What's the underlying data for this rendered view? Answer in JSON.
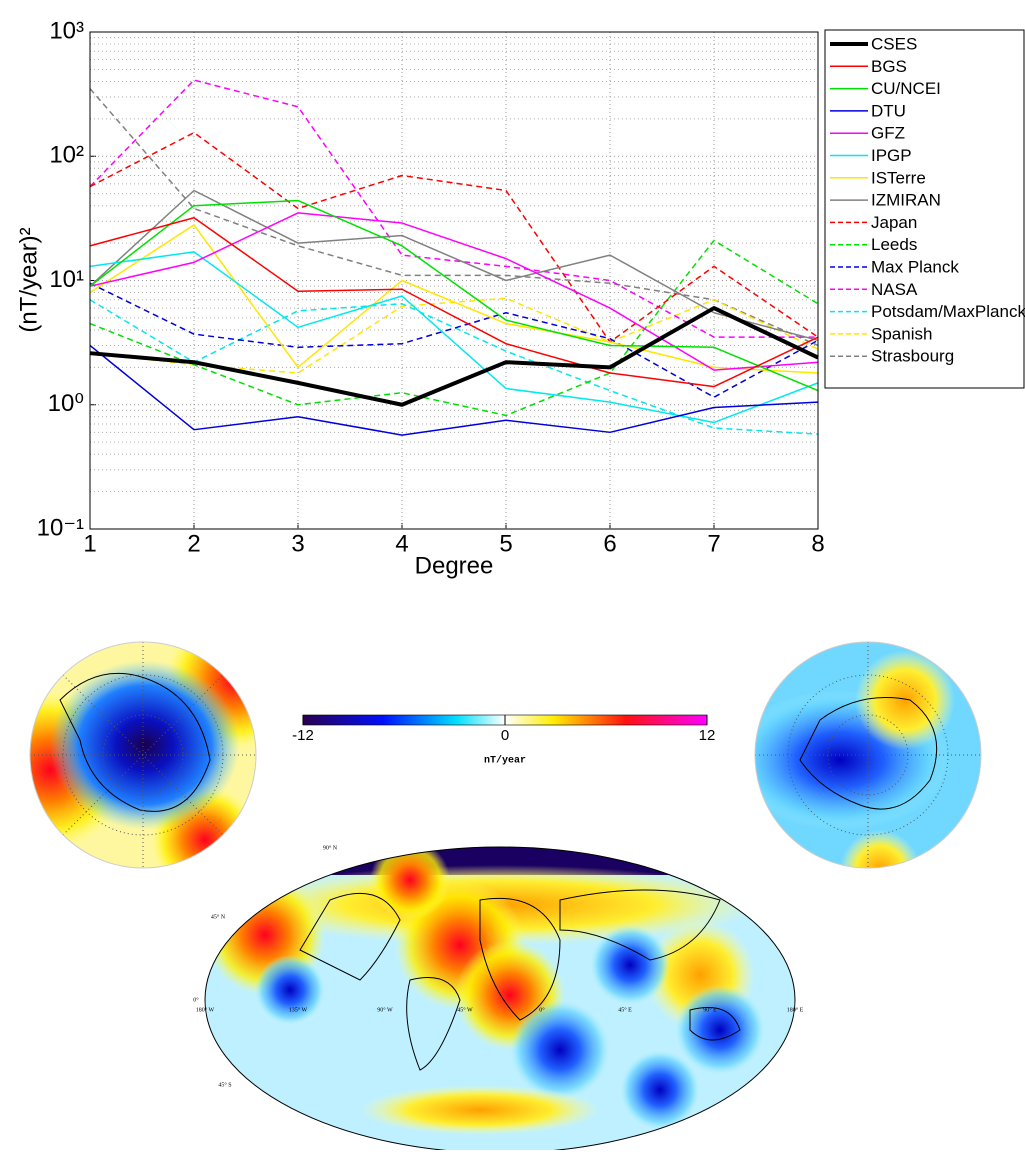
{
  "chart_data": {
    "type": "line",
    "x_label": "Degree",
    "y_label": "(nT/year)²",
    "x": [
      1,
      2,
      3,
      4,
      5,
      6,
      7,
      8
    ],
    "xlim": [
      1,
      8
    ],
    "xticks": [
      1,
      2,
      3,
      4,
      5,
      6,
      7,
      8
    ],
    "ylim": [
      0.1,
      1000
    ],
    "yticks": [
      {
        "value": 0.1,
        "label": "10⁻¹"
      },
      {
        "value": 1,
        "label": "10⁰"
      },
      {
        "value": 10,
        "label": "10¹"
      },
      {
        "value": 100,
        "label": "10²"
      },
      {
        "value": 1000,
        "label": "10³"
      }
    ],
    "log_y": true,
    "grid": true,
    "minor_grid": true,
    "legend": "outside-right",
    "series": [
      {
        "name": "CSES",
        "color": "#000000",
        "width": 4,
        "dashed": false,
        "values": [
          2.6,
          2.2,
          1.5,
          1.0,
          2.2,
          2.0,
          6.0,
          2.4
        ]
      },
      {
        "name": "BGS",
        "color": "#ff0000",
        "width": 1.5,
        "dashed": false,
        "values": [
          19,
          32,
          8.2,
          8.5,
          3.1,
          1.8,
          1.4,
          3.5
        ]
      },
      {
        "name": "CU/NCEI",
        "color": "#00e000",
        "width": 1.5,
        "dashed": false,
        "values": [
          9,
          40,
          44,
          19,
          4.8,
          3.0,
          2.9,
          1.3
        ]
      },
      {
        "name": "DTU",
        "color": "#0000dd",
        "width": 1.5,
        "dashed": false,
        "values": [
          3.0,
          0.63,
          0.8,
          0.57,
          0.75,
          0.6,
          0.95,
          1.05
        ]
      },
      {
        "name": "GFZ",
        "color": "#ff00ff",
        "width": 1.5,
        "dashed": false,
        "values": [
          9,
          14,
          35,
          29,
          15,
          6,
          1.9,
          2.2
        ]
      },
      {
        "name": "IPGP",
        "color": "#00e8f0",
        "width": 1.5,
        "dashed": false,
        "values": [
          13,
          17,
          4.2,
          7.5,
          1.35,
          1.05,
          0.72,
          1.5
        ]
      },
      {
        "name": "ISTerre",
        "color": "#ffe600",
        "width": 1.5,
        "dashed": false,
        "values": [
          8,
          28,
          2.0,
          10,
          4.5,
          3.2,
          2.0,
          1.8
        ]
      },
      {
        "name": "IZMIRAN",
        "color": "#808080",
        "width": 1.5,
        "dashed": false,
        "values": [
          9,
          53,
          20,
          23,
          10,
          16,
          5.5,
          3.3
        ]
      },
      {
        "name": "Japan",
        "color": "#ff0000",
        "width": 1.5,
        "dashed": true,
        "values": [
          57,
          155,
          38,
          70,
          53,
          3.2,
          13,
          3.5
        ]
      },
      {
        "name": "Leeds",
        "color": "#00e000",
        "width": 1.5,
        "dashed": true,
        "values": [
          4.5,
          2.1,
          1.0,
          1.25,
          0.82,
          1.8,
          21,
          6.5
        ]
      },
      {
        "name": "Max Planck",
        "color": "#0000dd",
        "width": 1.5,
        "dashed": true,
        "values": [
          9.5,
          3.7,
          2.9,
          3.1,
          5.5,
          3.4,
          1.15,
          3.3
        ]
      },
      {
        "name": "NASA",
        "color": "#ff00ff",
        "width": 1.5,
        "dashed": true,
        "values": [
          57,
          410,
          250,
          16,
          13,
          10,
          3.5,
          3.5
        ]
      },
      {
        "name": "Potsdam/MaxPlanck",
        "color": "#00e8f0",
        "width": 1.5,
        "dashed": true,
        "values": [
          7,
          2.2,
          5.7,
          6.5,
          2.7,
          1.3,
          0.65,
          0.58
        ]
      },
      {
        "name": "Spanish",
        "color": "#ffe600",
        "width": 1.5,
        "dashed": true,
        "values": [
          2.6,
          2.1,
          1.8,
          6.2,
          7.2,
          3.2,
          7.0,
          2.8
        ]
      },
      {
        "name": "Strasbourg",
        "color": "#808080",
        "width": 1.5,
        "dashed": true,
        "values": [
          350,
          38,
          19,
          11,
          11,
          9.5,
          7.0,
          3.0
        ]
      }
    ]
  },
  "colorbar": {
    "label": "nT/year",
    "lim": [
      -12,
      12
    ],
    "ticks": [
      -12,
      0,
      12
    ]
  },
  "map_labels": [
    "90° N",
    "45° N",
    "0°",
    "180° W",
    "135° W",
    "90° W",
    "45° W",
    "0°",
    "45° E",
    "90° E",
    "180° E",
    "45° S"
  ]
}
